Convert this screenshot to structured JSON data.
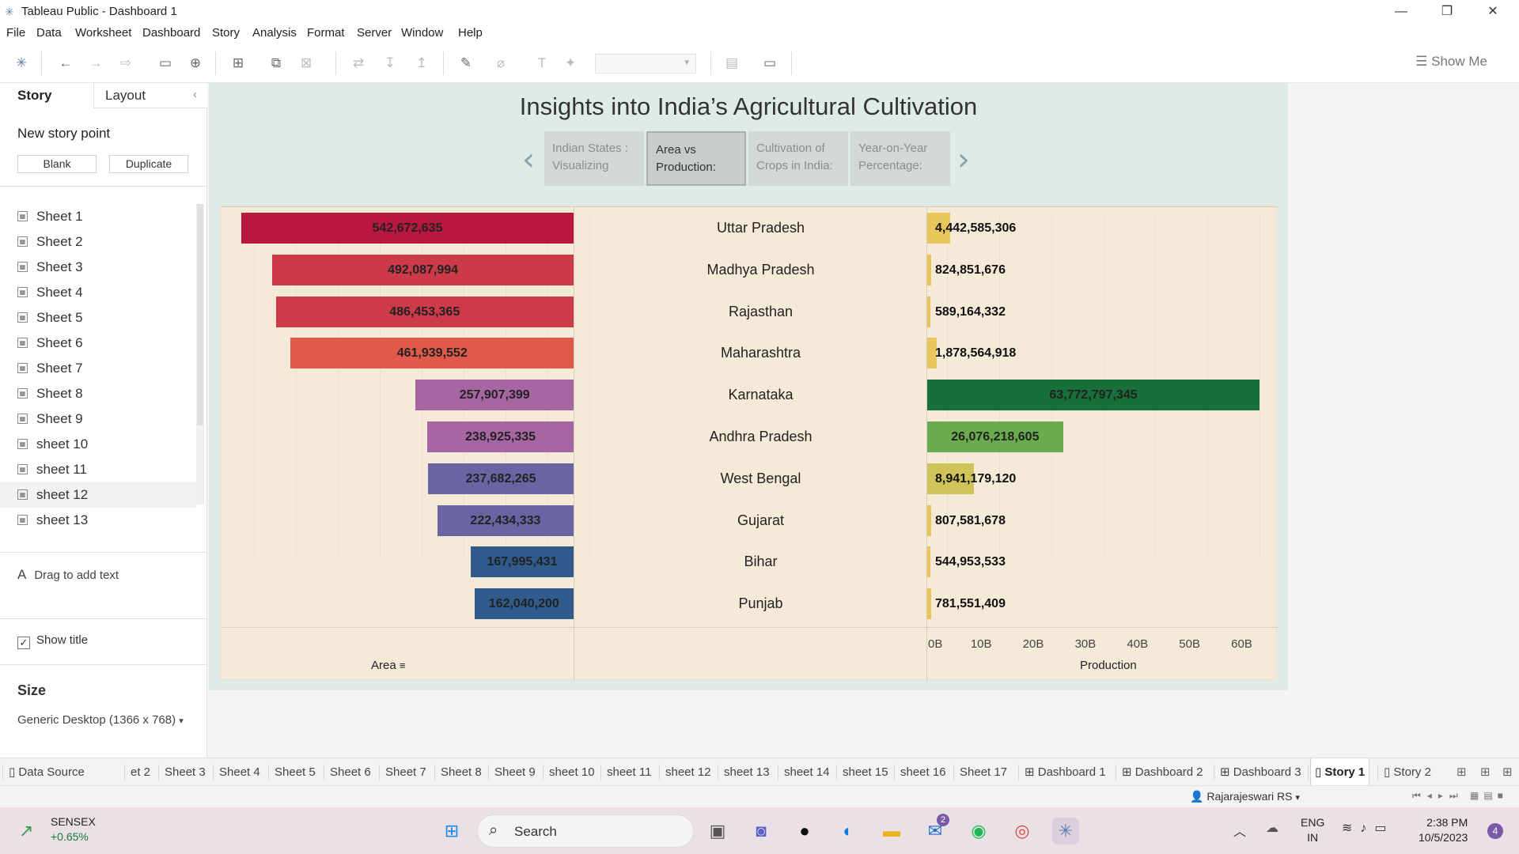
{
  "window": {
    "title": "Tableau Public - Dashboard 1",
    "minimize": "—",
    "restore": "❐",
    "close": "✕"
  },
  "menu": [
    "File",
    "Data",
    "Worksheet",
    "Dashboard",
    "Story",
    "Analysis",
    "Format",
    "Server",
    "Window",
    "Help"
  ],
  "toolbar": {
    "show_me": "Show Me"
  },
  "left_panel": {
    "tab_story": "Story",
    "tab_layout": "Layout",
    "collapse_glyph": "‹",
    "new_story_point": "New story point",
    "blank_button": "Blank",
    "duplicate_button": "Duplicate",
    "sheets": [
      "Sheet 1",
      "Sheet 2",
      "Sheet 3",
      "Sheet 4",
      "Sheet 5",
      "Sheet 6",
      "Sheet 7",
      "Sheet 8",
      "Sheet 9",
      "sheet 10",
      "sheet 11",
      "sheet 12",
      "sheet 13"
    ],
    "drag_text_icon": "A",
    "drag_text": "Drag to add text",
    "show_title": "Show title",
    "show_title_checked": true,
    "size_heading": "Size",
    "size_value": "Generic Desktop (1366 x 768)"
  },
  "story": {
    "title": "Insights into India’s Agricultural Cultivation",
    "points": [
      {
        "line1": "Indian States :",
        "line2": "Visualizing"
      },
      {
        "line1": "Area vs",
        "line2": "Production:"
      },
      {
        "line1": "Cultivation of",
        "line2": "Crops in India:"
      },
      {
        "line1": "Year-on-Year",
        "line2": "Percentage:"
      }
    ],
    "active_point": 1
  },
  "chart_data": {
    "type": "bar",
    "categories": [
      "Uttar Pradesh",
      "Madhya Pradesh",
      "Rajasthan",
      "Maharashtra",
      "Karnataka",
      "Andhra Pradesh",
      "West Bengal",
      "Gujarat",
      "Bihar",
      "Punjab"
    ],
    "area": {
      "values": [
        542672635,
        492087994,
        486453365,
        461939552,
        257907399,
        238925335,
        237682265,
        222434333,
        167995431,
        162040200
      ],
      "labels": [
        "542,672,635",
        "492,087,994",
        "486,453,365",
        "461,939,552",
        "257,907,399",
        "238,925,335",
        "237,682,265",
        "222,434,333",
        "167,995,431",
        "162,040,200"
      ],
      "colors": [
        "#b9173e",
        "#cc3a48",
        "#cd3a48",
        "#e0594a",
        "#a766a2",
        "#a766a2",
        "#6b64a4",
        "#6b64a4",
        "#2f5c8d",
        "#2f5c8d"
      ],
      "axis_title": "Area",
      "xlim": [
        0,
        542672635
      ]
    },
    "production": {
      "values": [
        4442585306,
        824851676,
        589164332,
        1878564918,
        63772797345,
        26076218605,
        8941179120,
        807581678,
        544953533,
        781551409
      ],
      "labels": [
        "4,442,585,306",
        "824,851,676",
        "589,164,332",
        "1,878,564,918",
        "63,772,797,345",
        "26,076,218,605",
        "8,941,179,120",
        "807,581,678",
        "544,953,533",
        "781,551,409"
      ],
      "colors": [
        "#e8c65c",
        "#e8c65c",
        "#e8c65c",
        "#e8c65c",
        "#17703a",
        "#6aab4e",
        "#cfc35a",
        "#e8c65c",
        "#e8c65c",
        "#e8c65c"
      ],
      "axis_title": "Production",
      "ticks": [
        "0B",
        "10B",
        "20B",
        "30B",
        "40B",
        "50B",
        "60B"
      ],
      "xlim": [
        0,
        63772797345
      ]
    }
  },
  "sheet_tabs": [
    "Data Source",
    "et 2",
    "Sheet 3",
    "Sheet 4",
    "Sheet 5",
    "Sheet 6",
    "Sheet 7",
    "Sheet 8",
    "Sheet 9",
    "sheet 10",
    "sheet 11",
    "sheet 12",
    "sheet 13",
    "sheet 14",
    "sheet 15",
    "sheet 16",
    "Sheet 17",
    "Dashboard 1",
    "Dashboard 2",
    "Dashboard 3",
    "Story 1",
    "Story 2"
  ],
  "active_sheet_tab": "Story 1",
  "status": {
    "user": "Rajarajeswari RS"
  },
  "taskbar": {
    "sensex_name": "SENSEX",
    "sensex_change": "+0.65%",
    "search": "Search",
    "mail_badge": "2",
    "lang_line1": "ENG",
    "lang_line2": "IN",
    "time": "2:38 PM",
    "date": "10/5/2023",
    "notifications": "4"
  }
}
